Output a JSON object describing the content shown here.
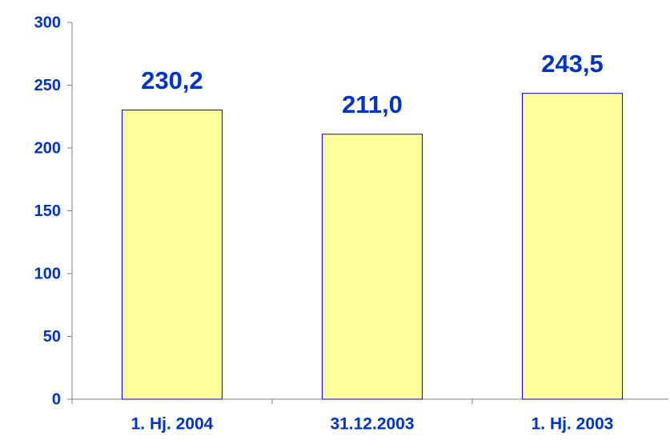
{
  "chart_data": {
    "type": "bar",
    "categories": [
      "1. Hj. 2004",
      "31.12.2003",
      "1. Hj. 2003"
    ],
    "values": [
      230.2,
      211.0,
      243.5
    ],
    "value_labels": [
      "230,2",
      "211,0",
      "243,5"
    ],
    "color": "#ffff99",
    "edgecolor": "#0000cc",
    "ylim": [
      0,
      300
    ],
    "yticks": [
      0,
      50,
      100,
      150,
      200,
      250,
      300
    ],
    "grid": false
  }
}
